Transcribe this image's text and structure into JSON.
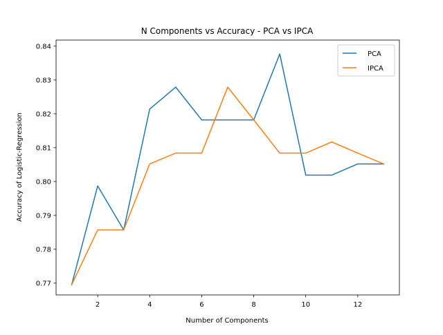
{
  "chart_data": {
    "type": "line",
    "title": "N Components vs Accuracy - PCA vs IPCA",
    "xlabel": "Number of Components",
    "ylabel": "Accuracy of Logistic-Regression",
    "xlim": [
      0.4,
      13.6
    ],
    "ylim": [
      0.7665,
      0.8418
    ],
    "xticks": [
      2,
      4,
      6,
      8,
      10,
      12
    ],
    "yticks": [
      0.77,
      0.78,
      0.79,
      0.8,
      0.81,
      0.82,
      0.83,
      0.84
    ],
    "ytick_labels": [
      "0.77",
      "0.78",
      "0.79",
      "0.80",
      "0.81",
      "0.82",
      "0.83",
      "0.84"
    ],
    "x": [
      1,
      2,
      3,
      4,
      5,
      6,
      7,
      8,
      9,
      10,
      11,
      12,
      13
    ],
    "series": [
      {
        "name": "PCA",
        "color": "#1f77b4",
        "values": [
          0.7695,
          0.7987,
          0.7857,
          0.8214,
          0.8279,
          0.8182,
          0.8182,
          0.8182,
          0.8377,
          0.8019,
          0.8019,
          0.8052,
          0.8052
        ]
      },
      {
        "name": "IPCA",
        "color": "#ff7f0e",
        "values": [
          0.7695,
          0.7857,
          0.7857,
          0.8052,
          0.8084,
          0.8084,
          0.8279,
          0.8182,
          0.8084,
          0.8084,
          0.8117,
          0.8084,
          0.8052
        ]
      }
    ],
    "grid": false,
    "legend": "upper right"
  }
}
